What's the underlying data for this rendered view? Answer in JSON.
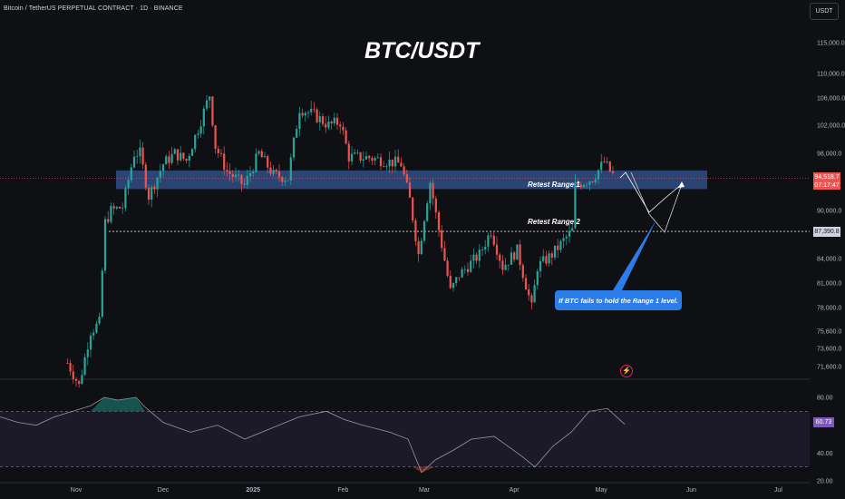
{
  "header": {
    "instrument": "Bitcoin / TetherUS PERPETUAL CONTRACT · 1D · BINANCE",
    "currency": "USDT"
  },
  "annotations": {
    "title": "BTC/USDT",
    "range1": "Retest Range 1",
    "range2": "Retest Range 2",
    "callout": "If BTC fails to hold the Range 1 level."
  },
  "price_tags": {
    "last_price": "94,518.7",
    "countdown": "07:17:47",
    "level": "87,390.8",
    "rsi": "60.73"
  },
  "colors": {
    "up": "#26a69a",
    "down": "#ef5350",
    "range_zone": "#2f4a7d",
    "rsi_line": "#9598a1",
    "rsi_band": "#7e57c2",
    "callout": "#2b7de9"
  },
  "chart_data": [
    {
      "type": "candlestick",
      "price_axis_ticks": [
        "115,000.0",
        "110,000.0",
        "106,000.0",
        "102,000.0",
        "98,000.0",
        "90,000.0",
        "84,000.0",
        "81,000.0",
        "78,000.0",
        "75,600.0",
        "73,600.0",
        "71,600.0"
      ],
      "x_ticks": [
        "Nov",
        "Dec",
        "2025",
        "Feb",
        "Mar",
        "Apr",
        "May",
        "Jun",
        "Jul"
      ],
      "zones": [
        {
          "name": "Retest Range 1",
          "from": 93000,
          "to": 95600
        }
      ],
      "levels": [
        87390.8
      ],
      "last_price": 94518.7,
      "close_path": [
        [
          "2024-10-29",
          72000
        ],
        [
          "2024-11-02",
          69500
        ],
        [
          "2024-11-06",
          75600
        ],
        [
          "2024-11-09",
          76400
        ],
        [
          "2024-11-11",
          88500
        ],
        [
          "2024-11-13",
          90000
        ],
        [
          "2024-11-17",
          90500
        ],
        [
          "2024-11-21",
          98000
        ],
        [
          "2024-11-23",
          98000
        ],
        [
          "2024-11-26",
          92000
        ],
        [
          "2024-12-01",
          96500
        ],
        [
          "2024-12-05",
          98000
        ],
        [
          "2024-12-09",
          97000
        ],
        [
          "2024-12-13",
          101500
        ],
        [
          "2024-12-17",
          106500
        ],
        [
          "2024-12-19",
          99000
        ],
        [
          "2024-12-23",
          95500
        ],
        [
          "2024-12-29",
          93500
        ],
        [
          "2025-01-03",
          98000
        ],
        [
          "2025-01-08",
          95000
        ],
        [
          "2025-01-13",
          94500
        ],
        [
          "2025-01-17",
          104500
        ],
        [
          "2025-01-22",
          103500
        ],
        [
          "2025-01-27",
          102000
        ],
        [
          "2025-01-31",
          102500
        ],
        [
          "2025-02-03",
          97500
        ],
        [
          "2025-02-10",
          97400
        ],
        [
          "2025-02-21",
          96500
        ],
        [
          "2025-02-24",
          91500
        ],
        [
          "2025-02-27",
          84500
        ],
        [
          "2025-03-03",
          94000
        ],
        [
          "2025-03-05",
          89500
        ],
        [
          "2025-03-10",
          80000
        ],
        [
          "2025-03-13",
          82000
        ],
        [
          "2025-03-20",
          84500
        ],
        [
          "2025-03-24",
          87500
        ],
        [
          "2025-03-28",
          83000
        ],
        [
          "2025-04-02",
          85000
        ],
        [
          "2025-04-07",
          78000
        ],
        [
          "2025-04-09",
          83000
        ],
        [
          "2025-04-14",
          84500
        ],
        [
          "2025-04-21",
          87500
        ],
        [
          "2025-04-22",
          93500
        ],
        [
          "2025-04-28",
          94500
        ],
        [
          "2025-05-02",
          96800
        ],
        [
          "2025-05-04",
          95500
        ],
        [
          "2025-05-06",
          94519
        ]
      ]
    },
    {
      "type": "line",
      "name": "RSI",
      "y_ticks": [
        "80.00",
        "40.00",
        "20.00"
      ],
      "bands": [
        70,
        30
      ],
      "last": 60.73
    }
  ]
}
